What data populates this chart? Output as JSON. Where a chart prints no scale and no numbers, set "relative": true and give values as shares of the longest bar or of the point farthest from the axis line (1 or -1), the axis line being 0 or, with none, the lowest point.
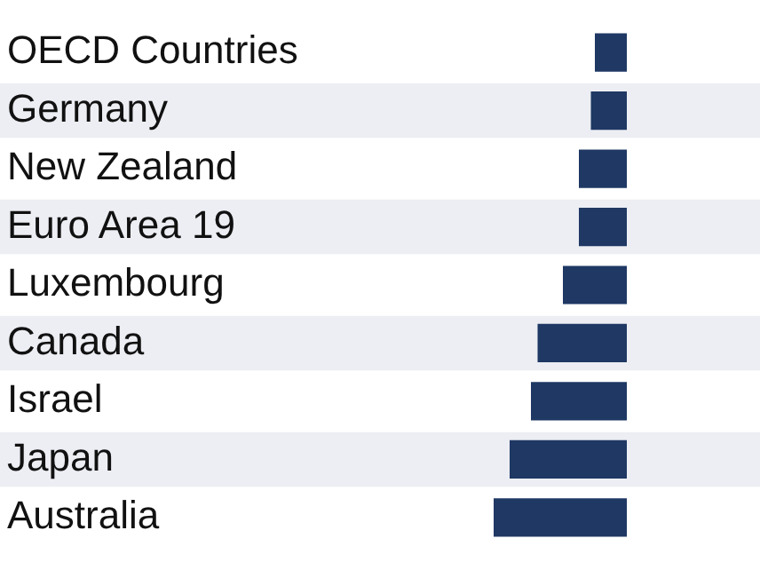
{
  "chart_data": {
    "type": "bar",
    "orientation": "horizontal",
    "relative": true,
    "categories": [
      "OECD Countries",
      "Germany",
      "New Zealand",
      "Euro Area 19",
      "Luxembourg",
      "Canada",
      "Israel",
      "Japan",
      "Australia"
    ],
    "values": [
      -0.24,
      -0.27,
      -0.36,
      -0.36,
      -0.48,
      -0.67,
      -0.72,
      -0.88,
      -1
    ],
    "color": "#1f3864",
    "legend": false
  }
}
